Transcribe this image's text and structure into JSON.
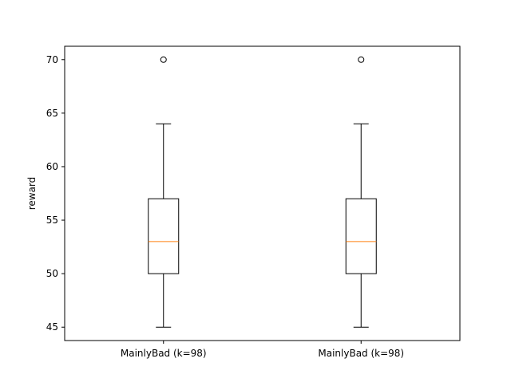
{
  "chart_data": {
    "type": "box",
    "title": "",
    "xlabel": "",
    "ylabel": "reward",
    "ylim": [
      43.75,
      71.25
    ],
    "yticks": [
      45,
      50,
      55,
      60,
      65,
      70
    ],
    "ytick_labels": [
      "45",
      "50",
      "55",
      "60",
      "65",
      "70"
    ],
    "grid": false,
    "categories": [
      "MainlyBad (k=98)",
      "MainlyBad (k=98)"
    ],
    "boxes": [
      {
        "whisker_low": 45,
        "q1": 50,
        "median": 53,
        "q3": 57,
        "whisker_high": 64,
        "outliers": [
          70
        ]
      },
      {
        "whisker_low": 45,
        "q1": 50,
        "median": 53,
        "q3": 57,
        "whisker_high": 64,
        "outliers": [
          70
        ]
      }
    ],
    "colors": {
      "box": "#000000",
      "median": "#ff7f0e",
      "whisker": "#000000",
      "outlier": "#000000"
    }
  }
}
